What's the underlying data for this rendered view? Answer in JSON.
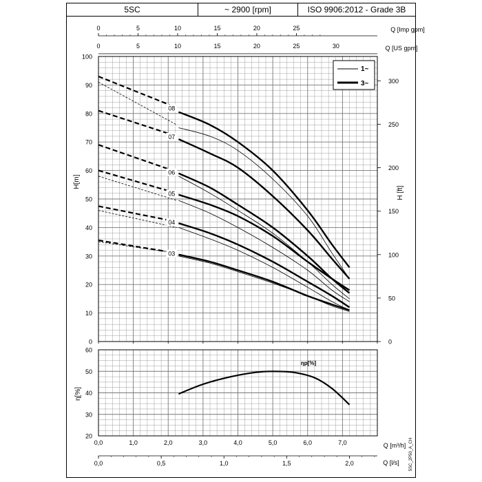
{
  "header": {
    "model": "5SC",
    "speed": "~ 2900 [rpm]",
    "standard": "ISO 9906:2012 - Grade 3B"
  },
  "legend": {
    "thin_label": "1~",
    "thick_label": "3~"
  },
  "side_code": "5SC_2P50_A_CH",
  "chart_data": [
    {
      "type": "line",
      "title": "",
      "xlabel": "Q [m³/h]",
      "ylabel": "H[m]",
      "y2label": "H [ft]",
      "top_axis_1_label": "Q [Imp gpm]",
      "top_axis_2_label": "Q [US gpm]",
      "xlim": [
        0,
        8
      ],
      "ylim": [
        0,
        100
      ],
      "y2lim": [
        0,
        328
      ],
      "x_ticks": [
        "0,0",
        "1,0",
        "2,0",
        "3,0",
        "4,0",
        "5,0",
        "6,0",
        "7,0"
      ],
      "y_ticks": [
        "0",
        "10",
        "20",
        "30",
        "40",
        "50",
        "60",
        "70",
        "80",
        "90",
        "100"
      ],
      "y2_ticks": [
        "0",
        "50",
        "100",
        "150",
        "200",
        "250",
        "300"
      ],
      "imp_gpm_ticks": [
        "0",
        "5",
        "10",
        "15",
        "20",
        "25"
      ],
      "us_gpm_ticks": [
        "0",
        "5",
        "10",
        "15",
        "20",
        "25",
        "30"
      ],
      "grid": true,
      "legend_position": "top-right",
      "series": [
        {
          "name": "08",
          "dashed": [
            [
              0,
              93
            ],
            [
              2.25,
              82
            ]
          ],
          "thick": [
            [
              2.3,
              80.5
            ],
            [
              3.2,
              76
            ],
            [
              4.0,
              70
            ],
            [
              5.0,
              60
            ],
            [
              6.0,
              46
            ],
            [
              6.7,
              34
            ],
            [
              7.2,
              26
            ]
          ],
          "thin": [
            [
              2.3,
              75
            ],
            [
              3.2,
              72
            ],
            [
              4.0,
              67
            ],
            [
              5.0,
              57
            ],
            [
              6.0,
              44
            ],
            [
              6.7,
              31
            ],
            [
              7.2,
              22
            ]
          ],
          "dashed_thin": [
            [
              0,
              91
            ],
            [
              2.25,
              76
            ]
          ]
        },
        {
          "name": "07",
          "dashed": [
            [
              0,
              81
            ],
            [
              2.25,
              72
            ]
          ],
          "thick": [
            [
              2.3,
              71
            ],
            [
              3.2,
              66
            ],
            [
              4.0,
              61
            ],
            [
              5.0,
              51
            ],
            [
              6.0,
              39
            ],
            [
              6.7,
              29
            ],
            [
              7.2,
              22
            ]
          ],
          "thin": [],
          "dashed_thin": []
        },
        {
          "name": "06",
          "dashed": [
            [
              0,
              69
            ],
            [
              2.25,
              59.5
            ]
          ],
          "thick": [
            [
              2.3,
              59
            ],
            [
              3.2,
              54
            ],
            [
              4.0,
              48
            ],
            [
              5.0,
              40
            ],
            [
              6.0,
              30
            ],
            [
              6.7,
              22
            ],
            [
              7.2,
              17
            ]
          ],
          "thin": [
            [
              2.3,
              58
            ],
            [
              3.2,
              52
            ],
            [
              4.0,
              46
            ],
            [
              5.0,
              38
            ],
            [
              6.0,
              28
            ],
            [
              6.7,
              20
            ],
            [
              7.2,
              15
            ]
          ],
          "dashed_thin": []
        },
        {
          "name": "05",
          "dashed": [
            [
              0,
              60
            ],
            [
              2.25,
              52
            ]
          ],
          "thick": [
            [
              2.3,
              51.5
            ],
            [
              3.2,
              48
            ],
            [
              4.0,
              44
            ],
            [
              5.0,
              37
            ],
            [
              6.0,
              28
            ],
            [
              6.7,
              22
            ],
            [
              7.2,
              18
            ]
          ],
          "thin": [
            [
              2.3,
              49.5
            ],
            [
              3.2,
              45
            ],
            [
              4.0,
              40
            ],
            [
              5.0,
              33
            ],
            [
              6.0,
              25
            ],
            [
              6.7,
              18
            ],
            [
              7.2,
              14
            ]
          ],
          "dashed_thin": [
            [
              0,
              58
            ],
            [
              2.25,
              49.5
            ]
          ]
        },
        {
          "name": "04",
          "dashed": [
            [
              0,
              47.5
            ],
            [
              2.25,
              42
            ]
          ],
          "thick": [
            [
              2.3,
              41.5
            ],
            [
              3.2,
              38
            ],
            [
              4.0,
              34
            ],
            [
              5.0,
              28
            ],
            [
              6.0,
              21
            ],
            [
              6.7,
              16
            ],
            [
              7.2,
              12
            ]
          ],
          "thin": [
            [
              2.3,
              40
            ],
            [
              3.2,
              36
            ],
            [
              4.0,
              32
            ],
            [
              5.0,
              26
            ],
            [
              6.0,
              19
            ],
            [
              6.7,
              14
            ],
            [
              7.2,
              11
            ]
          ],
          "dashed_thin": [
            [
              0,
              46
            ],
            [
              2.25,
              40
            ]
          ]
        },
        {
          "name": "03",
          "dashed": [
            [
              0,
              35.5
            ],
            [
              2.25,
              31
            ]
          ],
          "thick": [
            [
              2.3,
              30.5
            ],
            [
              3.2,
              28
            ],
            [
              4.0,
              25
            ],
            [
              5.0,
              21
            ],
            [
              6.0,
              16
            ],
            [
              6.7,
              13
            ],
            [
              7.2,
              11
            ]
          ],
          "thin": [
            [
              2.3,
              30
            ],
            [
              3.2,
              27.5
            ],
            [
              4.0,
              24.5
            ],
            [
              5.0,
              20.5
            ],
            [
              6.0,
              16
            ],
            [
              6.7,
              12.5
            ],
            [
              7.2,
              10.5
            ]
          ],
          "dashed_thin": [
            [
              0,
              35
            ],
            [
              2.25,
              31
            ]
          ]
        }
      ]
    },
    {
      "type": "line",
      "title": "",
      "xlabel": "Q [m³/h]",
      "x2label": "Q [l/s]",
      "ylabel": "η[%]",
      "curve_label": "ηp[%]",
      "xlim": [
        0,
        8
      ],
      "ylim": [
        20,
        60
      ],
      "x_ticks": [
        "0,0",
        "1,0",
        "2,0",
        "3,0",
        "4,0",
        "5,0",
        "6,0",
        "7,0"
      ],
      "ls_ticks": [
        "0,0",
        "0,5",
        "1,0",
        "1,5",
        "2,0"
      ],
      "y_ticks": [
        "20",
        "30",
        "40",
        "50",
        "60"
      ],
      "grid": true,
      "series": [
        {
          "name": "ηp[%]",
          "x": [
            2.3,
            3.0,
            3.8,
            4.5,
            5.0,
            5.6,
            6.2,
            6.7,
            7.2
          ],
          "y": [
            39.5,
            44,
            47.5,
            49.5,
            50,
            49.5,
            47,
            42,
            34.5
          ]
        }
      ]
    }
  ]
}
